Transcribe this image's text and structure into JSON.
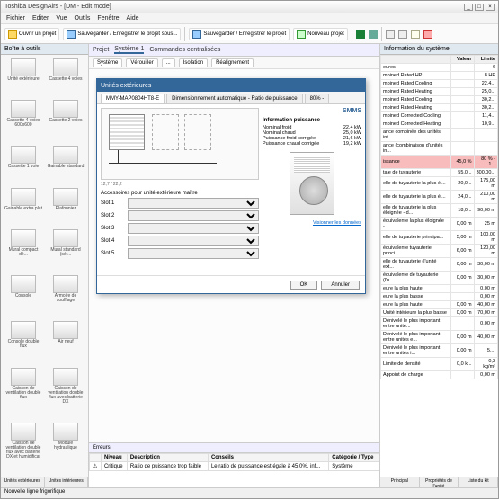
{
  "app": {
    "title": "Toshiba DesignAirs - [DM - Edit mode]"
  },
  "winbtns": {
    "min": "_",
    "max": "□",
    "close": "×"
  },
  "menu": [
    "Fichier",
    "Editer",
    "Vue",
    "Outils",
    "Fenêtre",
    "Aide"
  ],
  "toolbar": {
    "open": "Ouvrir un projet",
    "save": "Sauvegarder / Enregistrer le projet sous...",
    "saveproj": "Sauvegarder / Enregistrer le projet",
    "new": "Nouveau projet"
  },
  "toolbox": {
    "title": "Boîte à outils",
    "items": [
      "Unité extérieure",
      "Cassette 4 voies",
      "Cassette 4 voies 600x600",
      "Cassette 2 voies",
      "Cassette 1 voie",
      "Gainable standard",
      "Gainable extra plat",
      "Plafonnier",
      "Mural compact dé...",
      "Mural standard (sér...",
      "Console",
      "Armoire de soufflage",
      "Console double flux",
      "Air neuf",
      "Caisson de ventilation double flux",
      "Caisson de ventilation double flux avec batterie DX",
      "Caisson de ventilation double flux avec batterie DX et humidificat",
      "Module hydraulique"
    ],
    "tabs": [
      "Unités extérieures",
      "Unités intérieures"
    ]
  },
  "doctabs": {
    "project": "Projet",
    "sys": "Système 1",
    "cmd": "Commandes centralisées"
  },
  "systabs": [
    "Système",
    "Vérouiller",
    "...",
    "Isolation",
    "Réalignement"
  ],
  "dialog": {
    "title": "Unités extérieures",
    "model": "MMY-MAP0804HT8-E",
    "tabs": [
      "MMY-MAP0804HT8-E",
      "Dimensionnement automatique - Ratio de puissance",
      "80% -"
    ],
    "coord": "12,7 / 22,2",
    "logo": "SMMS",
    "slotsLabel": "Accessoires pour unité extérieure maître",
    "slots": [
      {
        "n": "Slot 1",
        "v": "<Aucun>"
      },
      {
        "n": "Slot 2",
        "v": "<Aucun>"
      },
      {
        "n": "Slot 3",
        "v": "<Aucun>"
      },
      {
        "n": "Slot 4",
        "v": "<Aucun>"
      },
      {
        "n": "Slot 5",
        "v": "<Aucun>"
      }
    ],
    "infoHdr": "Information puissance",
    "info": [
      {
        "k": "Nominal froid",
        "v": "22,4 kW"
      },
      {
        "k": "Nominal chaud",
        "v": "25,0 kW"
      },
      {
        "k": "Puissance froid corrigée",
        "v": "21,6 kW"
      },
      {
        "k": "Puissance chaud corrigée",
        "v": "19,2 kW"
      }
    ],
    "link": "Visionner les données",
    "ok": "OK",
    "cancel": "Annuler"
  },
  "errors": {
    "title": "Erreurs",
    "cols": [
      "",
      "Niveau",
      "Description",
      "Conseils",
      "Catégorie / Type"
    ],
    "rows": [
      [
        "⚠",
        "Critique",
        "Ratio de puissance trop faible",
        "Le ratio de puissance est égale à 45,0%, inf...",
        "Système"
      ]
    ]
  },
  "props": {
    "title": "Information du système",
    "cols": [
      "",
      "Valeur",
      "Limite"
    ],
    "rows": [
      {
        "k": "eures",
        "v": "",
        "l": "6"
      },
      {
        "k": "mbined Rated HP",
        "v": "",
        "l": "8 HP"
      },
      {
        "k": "mbined Rated Cooling",
        "v": "",
        "l": "22,4..."
      },
      {
        "k": "mbined Rated Heating",
        "v": "",
        "l": "25,0..."
      },
      {
        "k": "mbined Rated Cooling",
        "v": "",
        "l": "30,2..."
      },
      {
        "k": "mbined Rated Heating",
        "v": "",
        "l": "30,2..."
      },
      {
        "k": "mbined Corrected Cooling",
        "v": "",
        "l": "11,4..."
      },
      {
        "k": "mbined Corrected Heating",
        "v": "",
        "l": "10,9..."
      },
      {
        "k": "ance combinée des unités int...",
        "v": "",
        "l": ""
      },
      {
        "k": "ance (combinaison d'unités in...",
        "v": "",
        "l": ""
      },
      {
        "k": "issance",
        "v": "45,0 %",
        "l": "80 % - 1...",
        "hl": true
      },
      {
        "k": "tale de tuyauterie",
        "v": "55,0...",
        "l": "300,00..."
      },
      {
        "k": "elle de tuyauterie la plus él...",
        "v": "20,0...",
        "l": "175,00 m"
      },
      {
        "k": "elle de tuyauterie la plus él...",
        "v": "24,0...",
        "l": "210,00 m"
      },
      {
        "k": "elle de tuyauterie la plus éloignée - d...",
        "v": "18,0...",
        "l": "90,00 m"
      },
      {
        "k": "équivalente la plus éloignée -...",
        "v": "0,00 m",
        "l": "25 m"
      },
      {
        "k": "elle de tuyauterie principa...",
        "v": "5,00 m",
        "l": "100,00 m"
      },
      {
        "k": "équivalente tuyauterie princi...",
        "v": "6,00 m",
        "l": "120,00 m"
      },
      {
        "k": "elle de tuyauterie (l'unité ext...",
        "v": "0,00 m",
        "l": "30,00 m"
      },
      {
        "k": "équivalente de tuyauterie (l'u...",
        "v": "0,00 m",
        "l": "30,00 m"
      },
      {
        "k": "eure la plus haute",
        "v": "",
        "l": "0,00 m"
      },
      {
        "k": "eure la plus basse",
        "v": "",
        "l": "0,00 m"
      },
      {
        "k": "eure la plus haute",
        "v": "0,00 m",
        "l": "40,00 m"
      },
      {
        "k": "Unité intérieure la plus basse",
        "v": "0,00 m",
        "l": "70,00 m"
      },
      {
        "k": "Dénivelé le plus important entre unité...",
        "v": "",
        "l": "0,00 m"
      },
      {
        "k": "Dénivelé le plus important entre unités e...",
        "v": "0,00 m",
        "l": "40,00 m"
      },
      {
        "k": "Dénivelé le plus important entre unités i...",
        "v": "0,00 m",
        "l": "5,..."
      },
      {
        "k": "Limite de densité",
        "v": "0,0 k...",
        "l": "0,3 kg/m³"
      },
      {
        "k": "Appoint de charge",
        "v": "",
        "l": "0,00 m"
      }
    ],
    "tabs": [
      "Principal",
      "Propriétés de l'unité",
      "Liste du kit"
    ]
  },
  "status": "Nouvelle ligne frigorifique"
}
